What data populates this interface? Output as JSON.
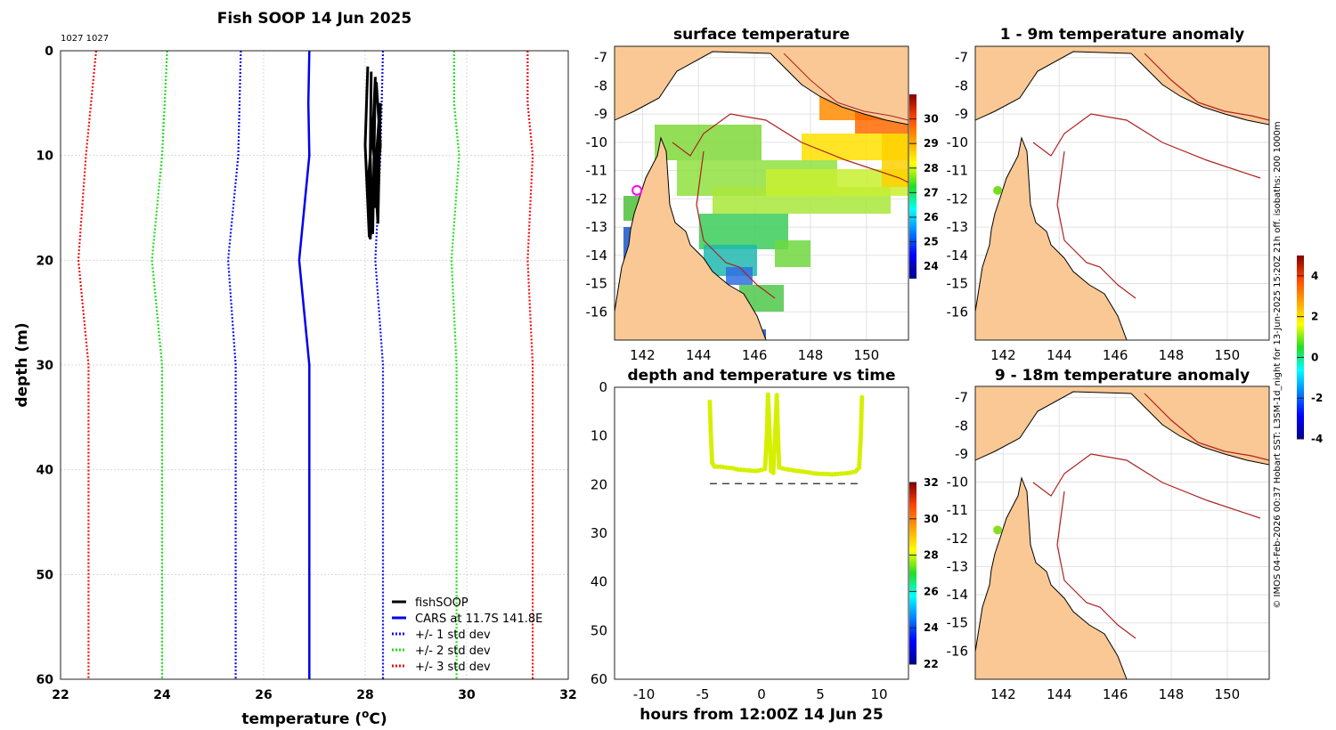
{
  "chart_data": [
    {
      "id": "profile",
      "type": "line",
      "title": "Fish SOOP 14 Jun 2025",
      "subtitle": "1027 1027",
      "xlabel": "temperature (",
      "xlabel_sup": "o",
      "xlabel_end": "C)",
      "ylabel": "depth (m)",
      "xlim": [
        22,
        32
      ],
      "ylim": [
        0,
        60
      ],
      "xticks": [
        22,
        24,
        26,
        28,
        30,
        32
      ],
      "yticks": [
        0,
        10,
        20,
        30,
        40,
        50,
        60
      ],
      "series": [
        {
          "name": "CARS at 11.7S 141.8E",
          "color": "#0000ee",
          "style": "solid",
          "points": [
            [
              26.9,
              0
            ],
            [
              26.88,
              5
            ],
            [
              26.9,
              10
            ],
            [
              26.7,
              20
            ],
            [
              26.9,
              30
            ],
            [
              26.9,
              60
            ]
          ]
        },
        {
          "name": "+/- 1 std dev",
          "color": "#1010ee",
          "style": "dotted",
          "points": [
            [
              25.55,
              0
            ],
            [
              25.5,
              10
            ],
            [
              25.3,
              20
            ],
            [
              25.45,
              30
            ],
            [
              25.45,
              60
            ]
          ]
        },
        {
          "name": "+/- 1 std dev",
          "color": "#1010ee",
          "style": "dotted",
          "nolegend": true,
          "points": [
            [
              28.35,
              0
            ],
            [
              28.3,
              10
            ],
            [
              28.2,
              20
            ],
            [
              28.35,
              30
            ],
            [
              28.35,
              60
            ]
          ]
        },
        {
          "name": "+/- 2 std dev",
          "color": "#22dd22",
          "style": "dotted",
          "points": [
            [
              24.1,
              0
            ],
            [
              24.05,
              5
            ],
            [
              24.0,
              10
            ],
            [
              23.8,
              20
            ],
            [
              24.0,
              30
            ],
            [
              24.0,
              60
            ]
          ]
        },
        {
          "name": "+/- 2 std dev",
          "color": "#22dd22",
          "style": "dotted",
          "nolegend": true,
          "points": [
            [
              29.75,
              0
            ],
            [
              29.75,
              5
            ],
            [
              29.85,
              10
            ],
            [
              29.7,
              20
            ],
            [
              29.8,
              30
            ],
            [
              29.8,
              60
            ]
          ]
        },
        {
          "name": "+/- 3 std dev",
          "color": "#ee1111",
          "style": "dotted",
          "points": [
            [
              22.7,
              0
            ],
            [
              22.6,
              5
            ],
            [
              22.5,
              10
            ],
            [
              22.35,
              20
            ],
            [
              22.55,
              30
            ],
            [
              22.55,
              60
            ]
          ]
        },
        {
          "name": "+/- 3 std dev",
          "color": "#ee1111",
          "style": "dotted",
          "nolegend": true,
          "points": [
            [
              31.2,
              0
            ],
            [
              31.2,
              5
            ],
            [
              31.3,
              10
            ],
            [
              31.2,
              20
            ],
            [
              31.3,
              30
            ],
            [
              31.3,
              60
            ]
          ]
        },
        {
          "name": "fishSOOP",
          "color": "#000000",
          "style": "solid",
          "points": [
            [
              28.05,
              1.5
            ],
            [
              28.0,
              9
            ],
            [
              28.08,
              17.8
            ],
            [
              28.12,
              2
            ],
            [
              28.1,
              10
            ],
            [
              28.15,
              17.5
            ],
            [
              28.2,
              2.5
            ],
            [
              28.15,
              8
            ],
            [
              28.25,
              16.5
            ],
            [
              28.3,
              5
            ],
            [
              28.2,
              12
            ],
            [
              28.28,
              6
            ],
            [
              28.1,
              18
            ],
            [
              28.05,
              13
            ],
            [
              28.22,
              3
            ],
            [
              28.3,
              9
            ],
            [
              28.18,
              15
            ]
          ]
        }
      ],
      "legend": [
        "fishSOOP",
        "CARS at 11.7S 141.8E",
        "+/- 1 std dev",
        "+/- 2 std dev",
        "+/- 3 std dev"
      ]
    },
    {
      "id": "time",
      "type": "scatter",
      "title": "depth and temperature vs time",
      "xlabel": "hours from 12:00Z 14 Jun 25",
      "xlim": [
        -12.5,
        12.5
      ],
      "ylim": [
        0,
        60
      ],
      "xticks": [
        -10,
        -5,
        0,
        5,
        10
      ],
      "yticks": [
        0,
        10,
        20,
        30,
        40,
        50,
        60
      ],
      "points_color": "#d4f000",
      "bottom_depth": 19.8,
      "bottom_segments": [
        [
          -4.4,
          0.6
        ],
        [
          1.2,
          8.5
        ]
      ],
      "dive_path": [
        [
          -4.4,
          3
        ],
        [
          -4.3,
          10
        ],
        [
          -4.2,
          15.5
        ],
        [
          -4.0,
          16.3
        ],
        [
          -3.5,
          16.3
        ],
        [
          -3.0,
          16.5
        ],
        [
          -2.5,
          16.6
        ],
        [
          -2.0,
          16.9
        ],
        [
          -1.5,
          17.0
        ],
        [
          -1.0,
          17.1
        ],
        [
          -0.5,
          17.2
        ],
        [
          0.0,
          17.0
        ],
        [
          0.3,
          16.8
        ],
        [
          0.45,
          10
        ],
        [
          0.55,
          1.5
        ],
        [
          0.7,
          10
        ],
        [
          0.8,
          17.2
        ],
        [
          1.0,
          17.6
        ],
        [
          1.15,
          10
        ],
        [
          1.3,
          1.6
        ],
        [
          1.4,
          10
        ],
        [
          1.5,
          16.5
        ],
        [
          2.0,
          16.8
        ],
        [
          2.5,
          17.0
        ],
        [
          3.0,
          17.2
        ],
        [
          3.5,
          17.3
        ],
        [
          4.0,
          17.5
        ],
        [
          4.5,
          17.7
        ],
        [
          5.0,
          17.8
        ],
        [
          5.5,
          17.8
        ],
        [
          6.0,
          17.9
        ],
        [
          6.5,
          17.8
        ],
        [
          7.0,
          17.7
        ],
        [
          7.5,
          17.6
        ],
        [
          8.0,
          17.3
        ],
        [
          8.3,
          16.5
        ],
        [
          8.45,
          10
        ],
        [
          8.55,
          1.5
        ]
      ],
      "colorbar": {
        "min": 22,
        "max": 32,
        "ticks": [
          22,
          24,
          26,
          28,
          30,
          32
        ]
      }
    },
    {
      "id": "map_sst",
      "type": "heatmap",
      "title": "surface temperature",
      "lon_range": [
        141,
        151.5
      ],
      "lat_range": [
        -17,
        -6.6
      ],
      "xticks": [
        142,
        144,
        146,
        148,
        150
      ],
      "yticks": [
        -7,
        -8,
        -9,
        -10,
        -11,
        -12,
        -13,
        -14,
        -15,
        -16
      ],
      "colorbar": {
        "min": 23.5,
        "max": 31,
        "ticks": [
          24,
          25,
          26,
          27,
          28,
          29,
          30
        ]
      },
      "marker": {
        "lon": 141.8,
        "lat": -11.7,
        "color": "#ff00ff"
      }
    },
    {
      "id": "map_anom1",
      "type": "heatmap",
      "title": "1 - 9m temperature anomaly",
      "lon_range": [
        141,
        151.5
      ],
      "lat_range": [
        -17,
        -6.6
      ],
      "xticks": [
        142,
        144,
        146,
        148,
        150
      ],
      "yticks": [
        -7,
        -8,
        -9,
        -10,
        -11,
        -12,
        -13,
        -14,
        -15,
        -16
      ],
      "colorbar": {
        "min": -4,
        "max": 5,
        "ticks": [
          -4,
          -2,
          0,
          2,
          4
        ]
      },
      "marker": {
        "lon": 141.8,
        "lat": -11.7,
        "color": "#77dd22"
      }
    },
    {
      "id": "map_anom2",
      "type": "heatmap",
      "title": "9 - 18m temperature anomaly",
      "lon_range": [
        141,
        151.5
      ],
      "lat_range": [
        -17,
        -6.6
      ],
      "xticks": [
        142,
        144,
        146,
        148,
        150
      ],
      "yticks": [
        -7,
        -8,
        -9,
        -10,
        -11,
        -12,
        -13,
        -14,
        -15,
        -16
      ],
      "marker": {
        "lon": 141.8,
        "lat": -11.7,
        "color": "#88dd22"
      }
    }
  ],
  "side_note": "© IMOS 04-Feb-2026 00:37 Hobart SST: L3SM-1d_night for 13-Jun-2025 15:20Z 21h off. isobaths: 200  1000m",
  "colors": {
    "land": "#f9c894",
    "isobath": "#b02020",
    "coast": "#000000"
  }
}
